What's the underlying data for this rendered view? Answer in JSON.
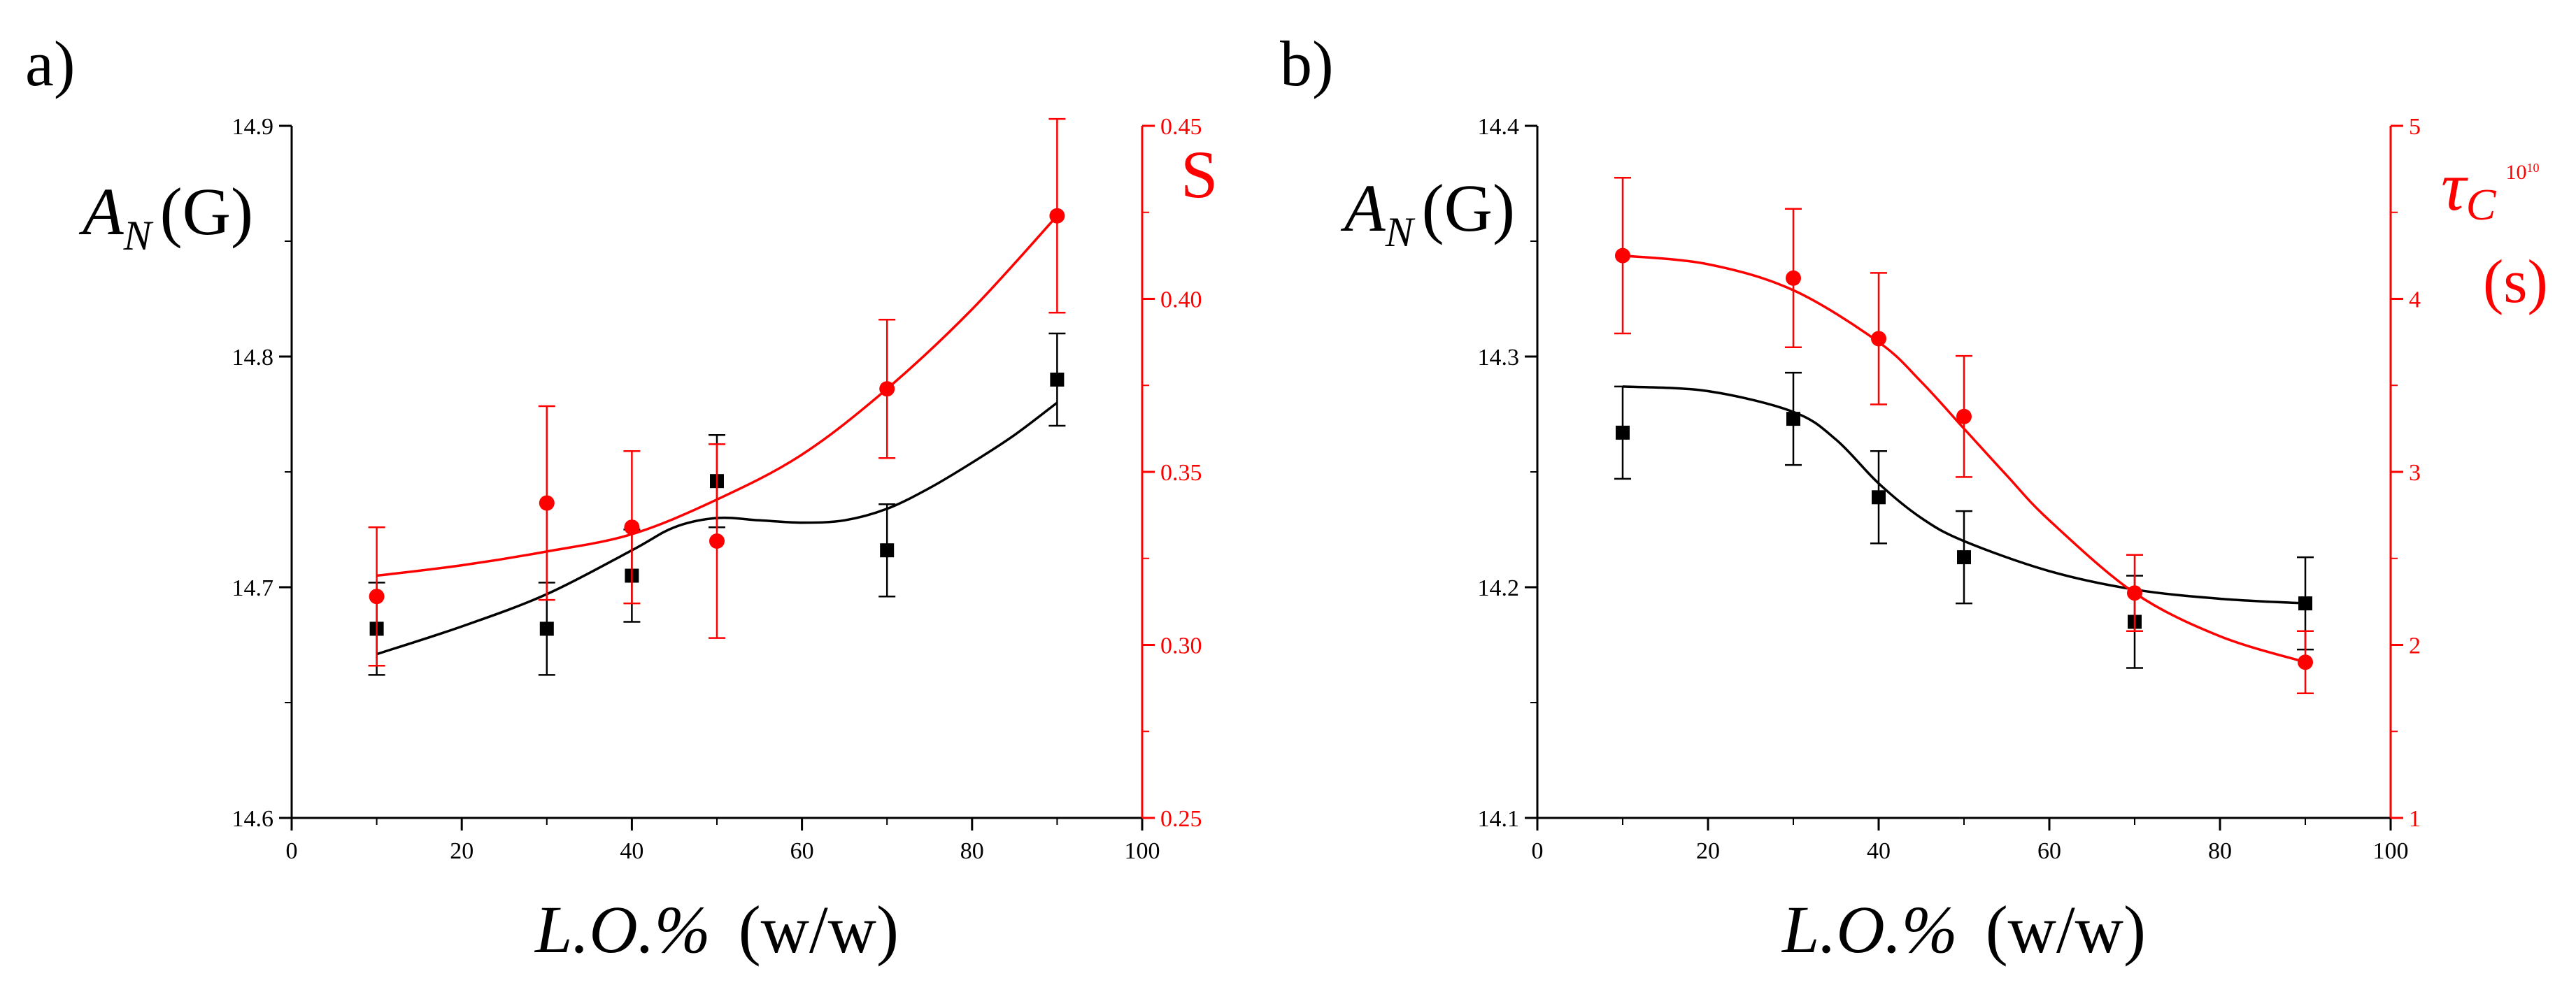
{
  "colors": {
    "black": "#000000",
    "red": "#ff0000"
  },
  "chart_data": [
    {
      "type": "scatter",
      "panel_label": "a)",
      "xlabel_main": "L.O.%",
      "xlabel_unit": "(w/w)",
      "xlim": [
        0,
        100
      ],
      "x_ticks": [
        "0",
        "20",
        "40",
        "60",
        "80",
        "100"
      ],
      "left_axis": {
        "label_symbol": "A",
        "label_sub": "N",
        "label_unit": "(G)",
        "ylim": [
          14.6,
          14.9
        ],
        "ticks": [
          "14.6",
          "14.7",
          "14.8",
          "14.9"
        ],
        "color": "#000000"
      },
      "right_axis": {
        "label": "S",
        "ylim": [
          0.25,
          0.45
        ],
        "ticks": [
          "0.25",
          "0.30",
          "0.35",
          "0.40",
          "0.45"
        ],
        "color": "#ff0000"
      },
      "series": [
        {
          "name": "A_N",
          "axis": "left",
          "marker": "square",
          "color": "#000000",
          "x": [
            10,
            30,
            40,
            50,
            70,
            90
          ],
          "y": [
            14.682,
            14.682,
            14.705,
            14.746,
            14.716,
            14.79
          ],
          "err": [
            0.02,
            0.02,
            0.02,
            0.02,
            0.02,
            0.02
          ],
          "fit_x": [
            10,
            20,
            30,
            40,
            45,
            50,
            55,
            60,
            65,
            70,
            75,
            80,
            85,
            90
          ],
          "fit_y": [
            14.671,
            14.683,
            14.697,
            14.716,
            14.726,
            14.73,
            14.729,
            14.728,
            14.729,
            14.734,
            14.743,
            14.754,
            14.766,
            14.78
          ]
        },
        {
          "name": "S",
          "axis": "right",
          "marker": "circle",
          "color": "#ff0000",
          "x": [
            10,
            30,
            40,
            50,
            70,
            90
          ],
          "y": [
            0.314,
            0.341,
            0.334,
            0.33,
            0.374,
            0.424
          ],
          "err": [
            0.02,
            0.028,
            0.022,
            0.028,
            0.02,
            0.028
          ],
          "fit_x": [
            10,
            20,
            30,
            40,
            50,
            60,
            70,
            80,
            90
          ],
          "fit_y": [
            0.32,
            0.323,
            0.327,
            0.332,
            0.342,
            0.355,
            0.374,
            0.397,
            0.424
          ]
        }
      ]
    },
    {
      "type": "scatter",
      "panel_label": "b)",
      "xlabel_main": "L.O.%",
      "xlabel_unit": "(w/w)",
      "xlim": [
        0,
        100
      ],
      "x_ticks": [
        "0",
        "20",
        "40",
        "60",
        "80",
        "100"
      ],
      "left_axis": {
        "label_symbol": "A",
        "label_sub": "N",
        "label_unit": "(G)",
        "ylim": [
          14.1,
          14.4
        ],
        "ticks": [
          "14.1",
          "14.2",
          "14.3",
          "14.4"
        ],
        "color": "#000000"
      },
      "right_axis": {
        "label": "τ",
        "label_sub": "C",
        "label_sup": "10",
        "label_exp": "10",
        "label_unit": "(s)",
        "ylim": [
          1,
          5
        ],
        "ticks": [
          "1",
          "2",
          "3",
          "4",
          "5"
        ],
        "color": "#ff0000"
      },
      "series": [
        {
          "name": "A_N",
          "axis": "left",
          "marker": "square",
          "color": "#000000",
          "x": [
            10,
            30,
            40,
            50,
            70,
            90
          ],
          "y": [
            14.267,
            14.273,
            14.239,
            14.213,
            14.185,
            14.193
          ],
          "err": [
            0.02,
            0.02,
            0.02,
            0.02,
            0.02,
            0.02
          ],
          "fit_x": [
            10,
            20,
            30,
            35,
            40,
            45,
            50,
            60,
            70,
            80,
            90
          ],
          "fit_y": [
            14.287,
            14.285,
            14.276,
            14.264,
            14.245,
            14.23,
            14.22,
            14.207,
            14.199,
            14.195,
            14.193
          ]
        },
        {
          "name": "tau_c",
          "axis": "right",
          "marker": "circle",
          "color": "#ff0000",
          "x": [
            10,
            30,
            40,
            50,
            70,
            90
          ],
          "y": [
            4.25,
            4.12,
            3.77,
            3.32,
            2.3,
            1.9
          ],
          "err": [
            0.45,
            0.4,
            0.38,
            0.35,
            0.22,
            0.18
          ],
          "fit_x": [
            10,
            20,
            30,
            40,
            45,
            50,
            55,
            60,
            70,
            80,
            90
          ],
          "fit_y": [
            4.25,
            4.2,
            4.05,
            3.75,
            3.52,
            3.25,
            2.98,
            2.72,
            2.3,
            2.05,
            1.9
          ]
        }
      ]
    }
  ]
}
